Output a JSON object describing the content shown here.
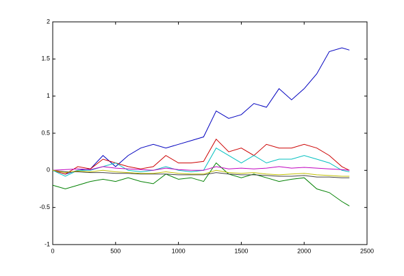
{
  "chart_data": {
    "type": "line",
    "x": [
      0,
      100,
      200,
      300,
      400,
      500,
      600,
      700,
      800,
      900,
      1000,
      1100,
      1200,
      1300,
      1400,
      1500,
      1600,
      1700,
      1800,
      1900,
      2000,
      2100,
      2200,
      2300,
      2360
    ],
    "series": [
      {
        "color": "#0000bf",
        "values": [
          0,
          -0.05,
          0,
          0.02,
          0.2,
          0.05,
          0.2,
          0.3,
          0.35,
          0.3,
          0.35,
          0.4,
          0.45,
          0.8,
          0.7,
          0.75,
          0.9,
          0.85,
          1.1,
          0.95,
          1.1,
          1.3,
          1.6,
          1.65,
          1.62
        ]
      },
      {
        "color": "#cc0000",
        "values": [
          0,
          -0.05,
          0.05,
          0.02,
          0.15,
          0.1,
          0.05,
          0.02,
          0.05,
          0.2,
          0.1,
          0.1,
          0.12,
          0.42,
          0.25,
          0.3,
          0.2,
          0.35,
          0.3,
          0.3,
          0.35,
          0.3,
          0.2,
          0.05,
          0
        ]
      },
      {
        "color": "#00bfbf",
        "values": [
          0,
          -0.08,
          0,
          0,
          0.05,
          0.1,
          0,
          -0.02,
          0,
          0.05,
          0,
          -0.02,
          0,
          0.3,
          0.2,
          0.1,
          0.2,
          0.1,
          0.15,
          0.15,
          0.2,
          0.15,
          0.1,
          0,
          -0.02
        ]
      },
      {
        "color": "#008000",
        "values": [
          -0.2,
          -0.25,
          -0.2,
          -0.15,
          -0.12,
          -0.15,
          -0.1,
          -0.15,
          -0.18,
          -0.05,
          -0.12,
          -0.1,
          -0.15,
          0.1,
          -0.05,
          -0.1,
          -0.05,
          -0.1,
          -0.15,
          -0.12,
          -0.1,
          -0.25,
          -0.3,
          -0.42,
          -0.48
        ]
      },
      {
        "color": "#bf00bf",
        "values": [
          0,
          0.01,
          0.02,
          0.01,
          0.05,
          0.03,
          0.02,
          0.01,
          0,
          0.03,
          0.01,
          0,
          0,
          0.05,
          0.02,
          0.03,
          0.02,
          0.03,
          0.05,
          0.03,
          0.04,
          0.03,
          0.02,
          0.01,
          0
        ]
      },
      {
        "color": "#404040",
        "values": [
          0,
          -0.02,
          -0.02,
          -0.03,
          -0.03,
          -0.04,
          -0.04,
          -0.05,
          -0.05,
          -0.05,
          -0.06,
          -0.06,
          -0.06,
          -0.03,
          -0.05,
          -0.06,
          -0.06,
          -0.07,
          -0.08,
          -0.08,
          -0.07,
          -0.09,
          -0.09,
          -0.1,
          -0.1
        ]
      },
      {
        "color": "#bfbf00",
        "values": [
          0,
          -0.03,
          -0.01,
          -0.02,
          0,
          -0.02,
          -0.03,
          -0.04,
          -0.04,
          -0.02,
          -0.04,
          -0.05,
          -0.05,
          0,
          -0.03,
          -0.04,
          -0.03,
          -0.05,
          -0.06,
          -0.05,
          -0.04,
          -0.06,
          -0.07,
          -0.08,
          -0.08
        ]
      }
    ],
    "xlim": [
      0,
      2500
    ],
    "xticks": [
      0,
      500,
      1000,
      1500,
      2000,
      2500
    ],
    "ylim": [
      -1,
      2
    ],
    "yticks": [
      -1,
      -0.5,
      0,
      0.5,
      1,
      1.5,
      2
    ]
  }
}
